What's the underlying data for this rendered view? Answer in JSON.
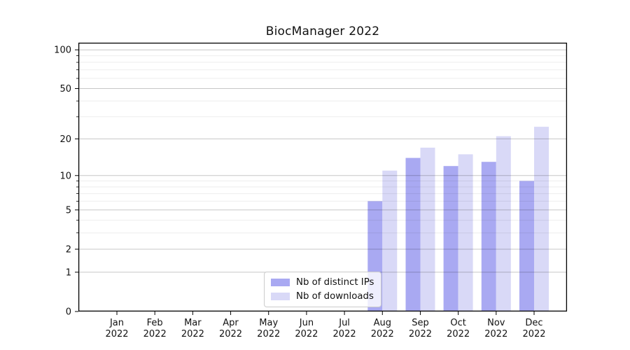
{
  "chart_data": {
    "type": "bar",
    "title": "BiocManager 2022",
    "categories": [
      "Jan 2022",
      "Feb 2022",
      "Mar 2022",
      "Apr 2022",
      "May 2022",
      "Jun 2022",
      "Jul 2022",
      "Aug 2022",
      "Sep 2022",
      "Oct 2022",
      "Nov 2022",
      "Dec 2022"
    ],
    "series": [
      {
        "name": "Nb of distinct IPs",
        "color": "#a9a9f2",
        "values": [
          0,
          0,
          0,
          0,
          0,
          0,
          0,
          6,
          14,
          12,
          13,
          9
        ]
      },
      {
        "name": "Nb of downloads",
        "color": "#d9d9f7",
        "values": [
          0,
          0,
          0,
          0,
          0,
          0,
          0,
          11,
          17,
          15,
          21,
          25
        ]
      }
    ],
    "xlabel": "",
    "ylabel": "",
    "yscale": "log1p",
    "yticks": [
      0,
      1,
      2,
      5,
      10,
      20,
      50,
      100
    ],
    "yticks_minor": [
      3,
      4,
      6,
      7,
      8,
      9,
      30,
      40,
      60,
      70,
      80,
      90
    ],
    "ylim": [
      0,
      130
    ],
    "grid": true,
    "legend_position": "lower center",
    "colors": {
      "axis": "#000000",
      "grid_major": "rgba(0,0,0,0.22)",
      "grid_minor": "rgba(0,0,0,0.07)",
      "background": "#ffffff"
    }
  }
}
